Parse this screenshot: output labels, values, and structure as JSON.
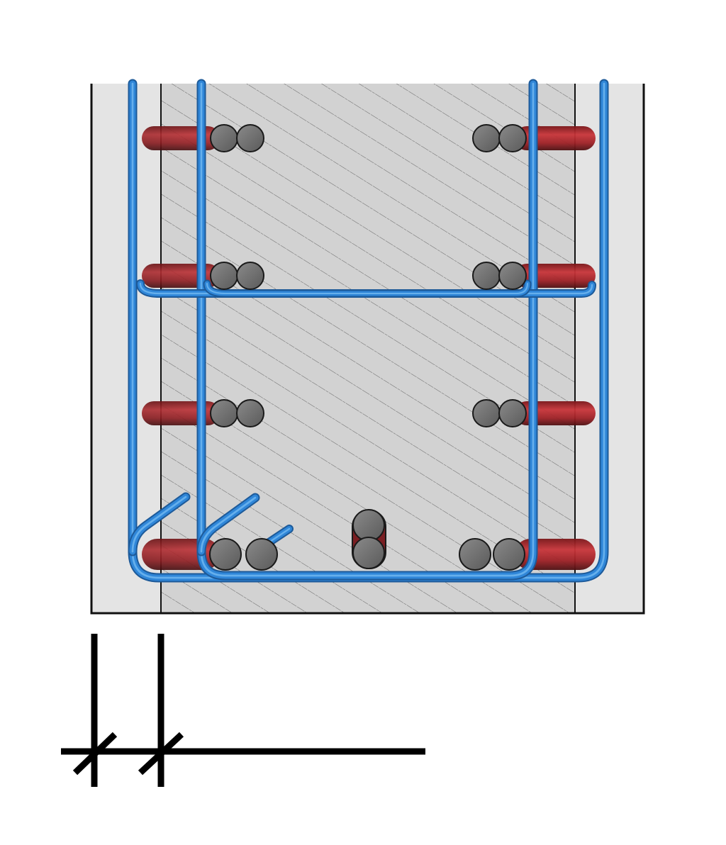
{
  "diagram": {
    "kind": "reinforced-concrete-section-detail",
    "colors": {
      "background": "#ffffff",
      "cover_zone": "#e4e4e4",
      "core_concrete": "#d2d2d2",
      "hatch": "#4a4a4a",
      "outline": "#111111",
      "stirrup": "#2f86d8",
      "stirrup_highlight": "#7cc0f5",
      "stirrup_shadow": "#1d5a99",
      "longitudinal_bar": "#b0262c",
      "longitudinal_bar_dark": "#5a1a1c",
      "cross_bar": "#6e6e6e",
      "cross_bar_outline": "#1a1a1a",
      "dimension_line": "#000000"
    },
    "elements": {
      "concrete_section": "concrete-section",
      "outer_stirrup": "outer-stirrup",
      "inner_stirrup": "inner-stirrup",
      "tie_bar": "horizontal-tie",
      "bar_rows": [
        "top-bar-row",
        "second-bar-row",
        "third-bar-row",
        "bottom-bar-row"
      ],
      "dimension": "dimension-extension-lines"
    }
  }
}
